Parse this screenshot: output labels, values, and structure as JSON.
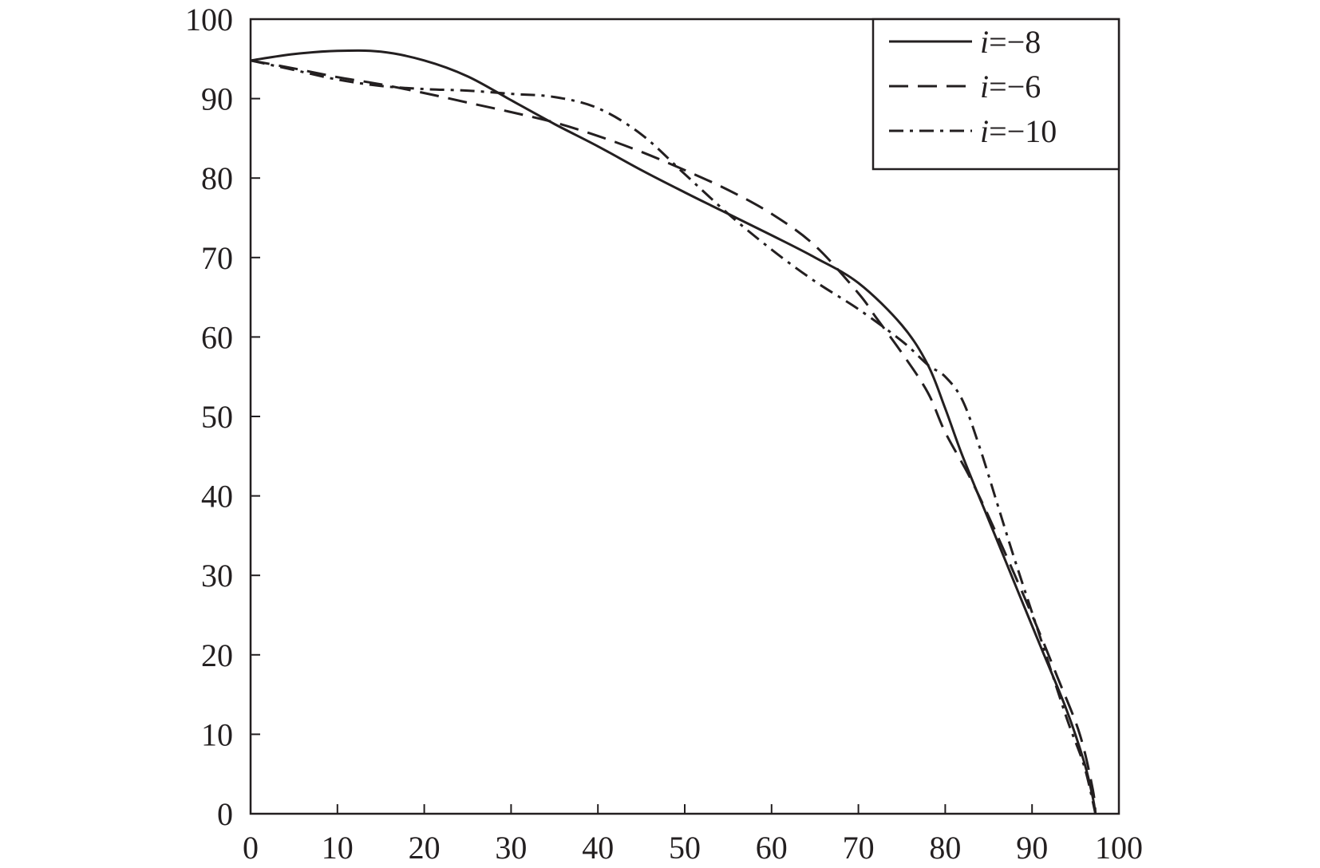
{
  "chart_data": {
    "type": "line",
    "title": "",
    "xlabel": "",
    "ylabel": "",
    "xlim": [
      0,
      100
    ],
    "ylim": [
      0,
      100
    ],
    "xticks": [
      0,
      10,
      20,
      30,
      40,
      50,
      60,
      70,
      80,
      90,
      100
    ],
    "yticks": [
      0,
      10,
      20,
      30,
      40,
      50,
      60,
      70,
      80,
      90,
      100
    ],
    "grid": false,
    "legend_position": "top-right",
    "colors": {
      "line": "#231f20",
      "axis": "#231f20"
    },
    "series": [
      {
        "name": "−8",
        "style": "solid",
        "points": [
          [
            0,
            94.8
          ],
          [
            5,
            95.6
          ],
          [
            10,
            96.0
          ],
          [
            15,
            95.9
          ],
          [
            20,
            94.8
          ],
          [
            25,
            92.8
          ],
          [
            30,
            89.8
          ],
          [
            35,
            86.8
          ],
          [
            40,
            84.0
          ],
          [
            45,
            81.0
          ],
          [
            50,
            78.2
          ],
          [
            55,
            75.5
          ],
          [
            60,
            72.8
          ],
          [
            65,
            70.0
          ],
          [
            70,
            66.8
          ],
          [
            75,
            61.5
          ],
          [
            78,
            56.5
          ],
          [
            80,
            51.0
          ],
          [
            82,
            45.0
          ],
          [
            85,
            37.0
          ],
          [
            88,
            29.0
          ],
          [
            91,
            21.0
          ],
          [
            94,
            13.0
          ],
          [
            96,
            6.5
          ],
          [
            97,
            2.0
          ],
          [
            97.3,
            0.0
          ]
        ]
      },
      {
        "name": "−6",
        "style": "dashed",
        "points": [
          [
            0,
            94.8
          ],
          [
            5,
            93.8
          ],
          [
            10,
            92.7
          ],
          [
            15,
            91.8
          ],
          [
            20,
            90.7
          ],
          [
            25,
            89.5
          ],
          [
            30,
            88.3
          ],
          [
            35,
            87.0
          ],
          [
            40,
            85.3
          ],
          [
            45,
            83.3
          ],
          [
            50,
            81.0
          ],
          [
            55,
            78.5
          ],
          [
            60,
            75.5
          ],
          [
            65,
            71.5
          ],
          [
            70,
            65.5
          ],
          [
            72,
            62.5
          ],
          [
            75,
            58.0
          ],
          [
            78,
            53.0
          ],
          [
            80,
            48.0
          ],
          [
            83,
            42.0
          ],
          [
            86,
            35.0
          ],
          [
            90,
            25.0
          ],
          [
            93,
            17.0
          ],
          [
            95.5,
            10.0
          ],
          [
            97,
            3.0
          ],
          [
            97.3,
            0.0
          ]
        ]
      },
      {
        "name": "−10",
        "style": "dashdot",
        "points": [
          [
            0,
            94.8
          ],
          [
            5,
            93.6
          ],
          [
            10,
            92.4
          ],
          [
            15,
            91.6
          ],
          [
            20,
            91.2
          ],
          [
            25,
            91.0
          ],
          [
            30,
            90.6
          ],
          [
            35,
            90.2
          ],
          [
            40,
            88.8
          ],
          [
            45,
            85.5
          ],
          [
            50,
            80.5
          ],
          [
            55,
            75.5
          ],
          [
            60,
            71.0
          ],
          [
            65,
            67.0
          ],
          [
            70,
            63.5
          ],
          [
            75,
            59.5
          ],
          [
            78,
            56.5
          ],
          [
            80,
            55.0
          ],
          [
            82,
            52.0
          ],
          [
            84,
            46.0
          ],
          [
            86,
            39.0
          ],
          [
            88,
            32.0
          ],
          [
            91,
            22.0
          ],
          [
            94,
            12.0
          ],
          [
            96,
            6.0
          ],
          [
            97.3,
            0.0
          ]
        ]
      }
    ]
  },
  "legend": {
    "var": "i",
    "eq": "="
  }
}
